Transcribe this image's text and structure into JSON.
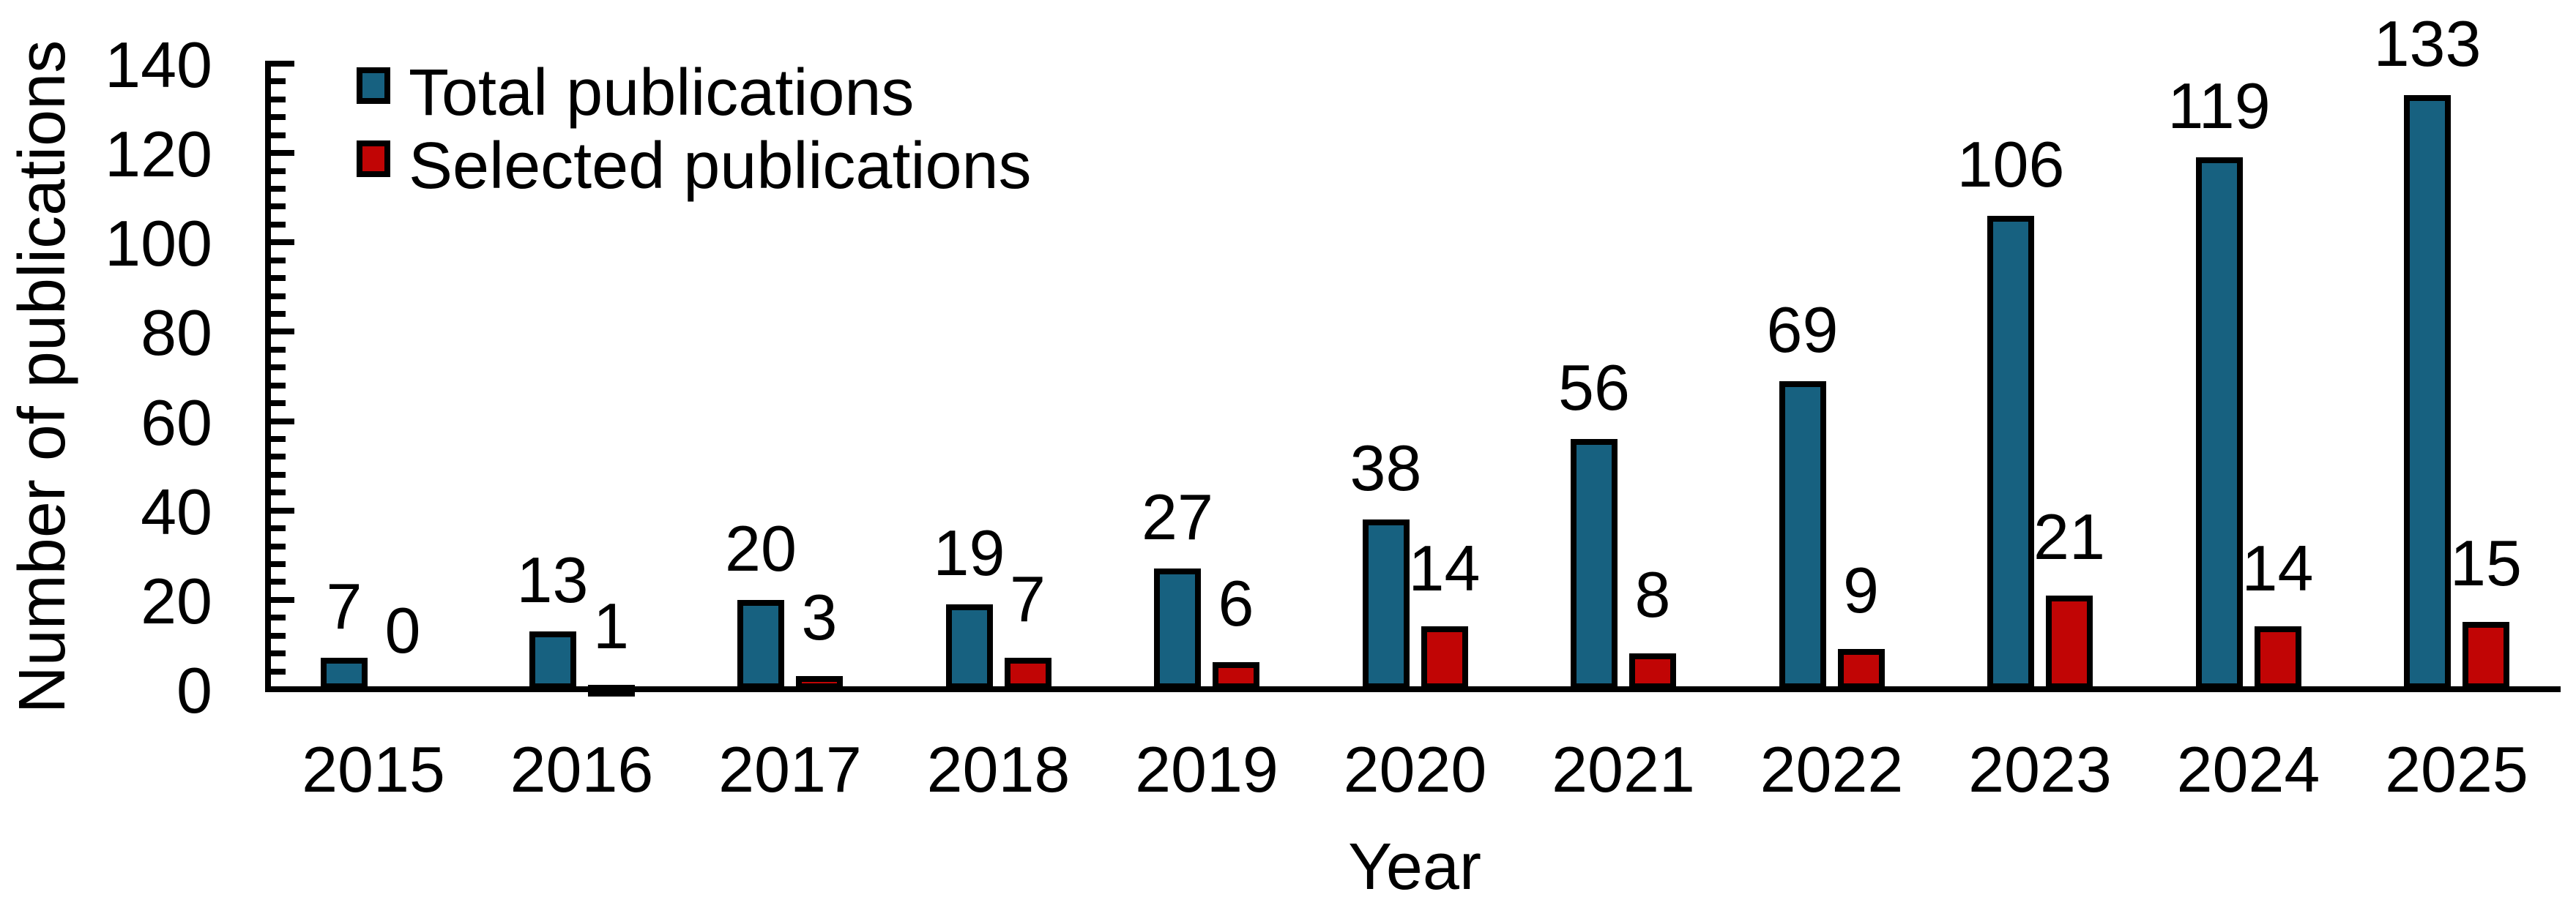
{
  "chart_data": {
    "type": "bar",
    "title": "",
    "xlabel": "Year",
    "ylabel": "Number of publications",
    "categories": [
      "2015",
      "2016",
      "2017",
      "2018",
      "2019",
      "2020",
      "2021",
      "2022",
      "2023",
      "2024",
      "2025"
    ],
    "series": [
      {
        "name": "Total publications",
        "color": "#176180",
        "values": [
          7,
          13,
          20,
          19,
          27,
          38,
          56,
          69,
          106,
          119,
          133
        ]
      },
      {
        "name": "Selected publications",
        "color": "#C10505",
        "values": [
          0,
          1,
          3,
          7,
          6,
          14,
          8,
          9,
          21,
          14,
          15
        ]
      }
    ],
    "ylim": [
      0,
      140
    ],
    "y_major_ticks": [
      0,
      20,
      40,
      60,
      80,
      100,
      120,
      140
    ],
    "y_minor_unit": 4,
    "grid": false,
    "data_labels": true,
    "legend_position": "top-left"
  },
  "colors": {
    "background": "#FFFFFF",
    "axis": "#000000",
    "bar_border": "#000000",
    "text": "#000000"
  }
}
